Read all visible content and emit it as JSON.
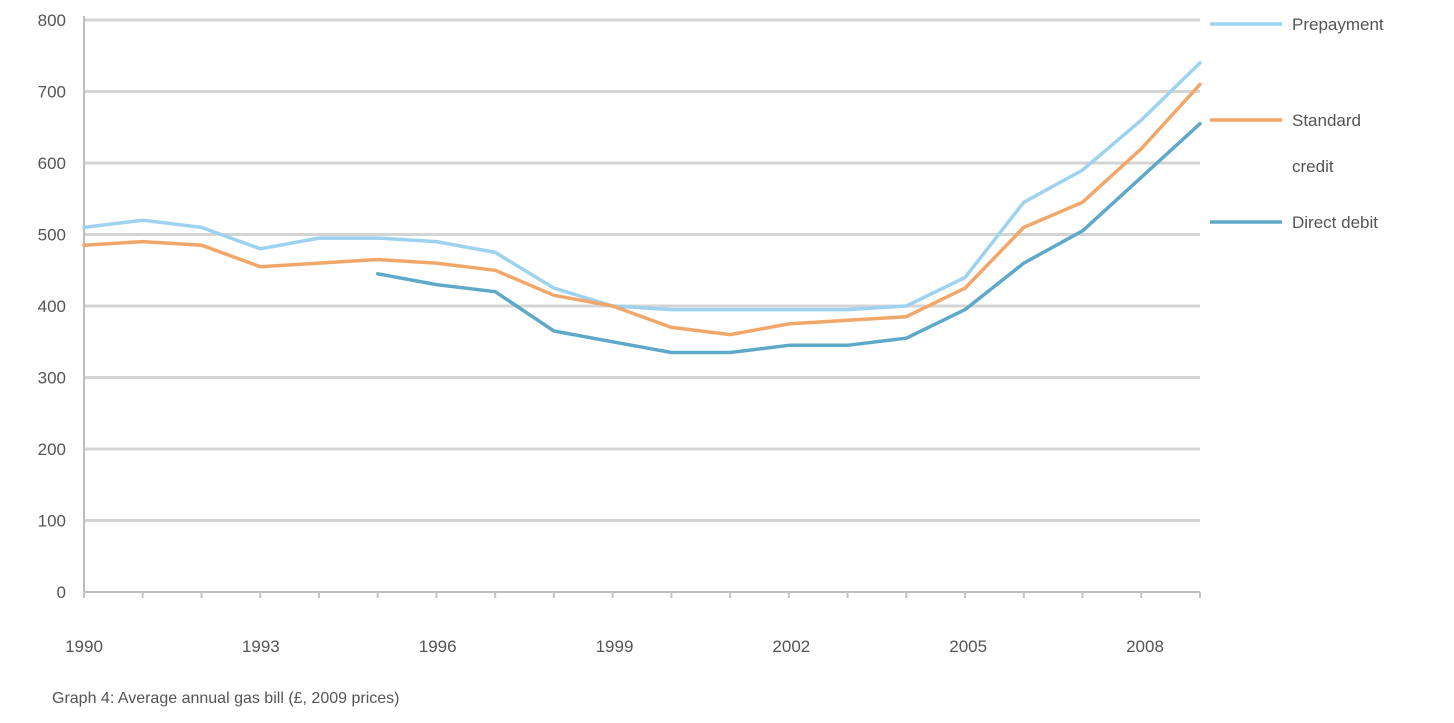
{
  "chart_data": {
    "type": "line",
    "title": "",
    "xlabel": "",
    "ylabel": "",
    "xlim": [
      1990,
      2009
    ],
    "ylim": [
      0,
      800
    ],
    "yticks": [
      0,
      100,
      200,
      300,
      400,
      500,
      600,
      700,
      800
    ],
    "xtick_labels": [
      "1990",
      "1993",
      "1996",
      "1999",
      "2002",
      "2005",
      "2008"
    ],
    "grid": true,
    "legend_position": "right",
    "x": [
      1990,
      1991,
      1992,
      1993,
      1994,
      1995,
      1996,
      1997,
      1998,
      1999,
      2000,
      2001,
      2002,
      2003,
      2004,
      2005,
      2006,
      2007,
      2008,
      2009
    ],
    "series": [
      {
        "name": "Prepayment",
        "color": "#9dd3ee",
        "values": [
          510,
          520,
          510,
          480,
          495,
          495,
          490,
          475,
          425,
          400,
          395,
          395,
          395,
          395,
          400,
          440,
          545,
          590,
          660,
          740
        ]
      },
      {
        "name": "Standard credit",
        "color": "#f2a76a",
        "values": [
          485,
          490,
          485,
          455,
          460,
          465,
          460,
          450,
          415,
          400,
          370,
          360,
          375,
          380,
          385,
          425,
          510,
          545,
          620,
          710
        ]
      },
      {
        "name": "Direct debit",
        "color": "#5ea9c8",
        "values": [
          null,
          null,
          null,
          null,
          null,
          445,
          430,
          420,
          365,
          350,
          335,
          335,
          345,
          345,
          355,
          395,
          460,
          505,
          580,
          655
        ]
      }
    ]
  },
  "caption": "Graph 4: Average annual gas bill (£, 2009 prices)"
}
